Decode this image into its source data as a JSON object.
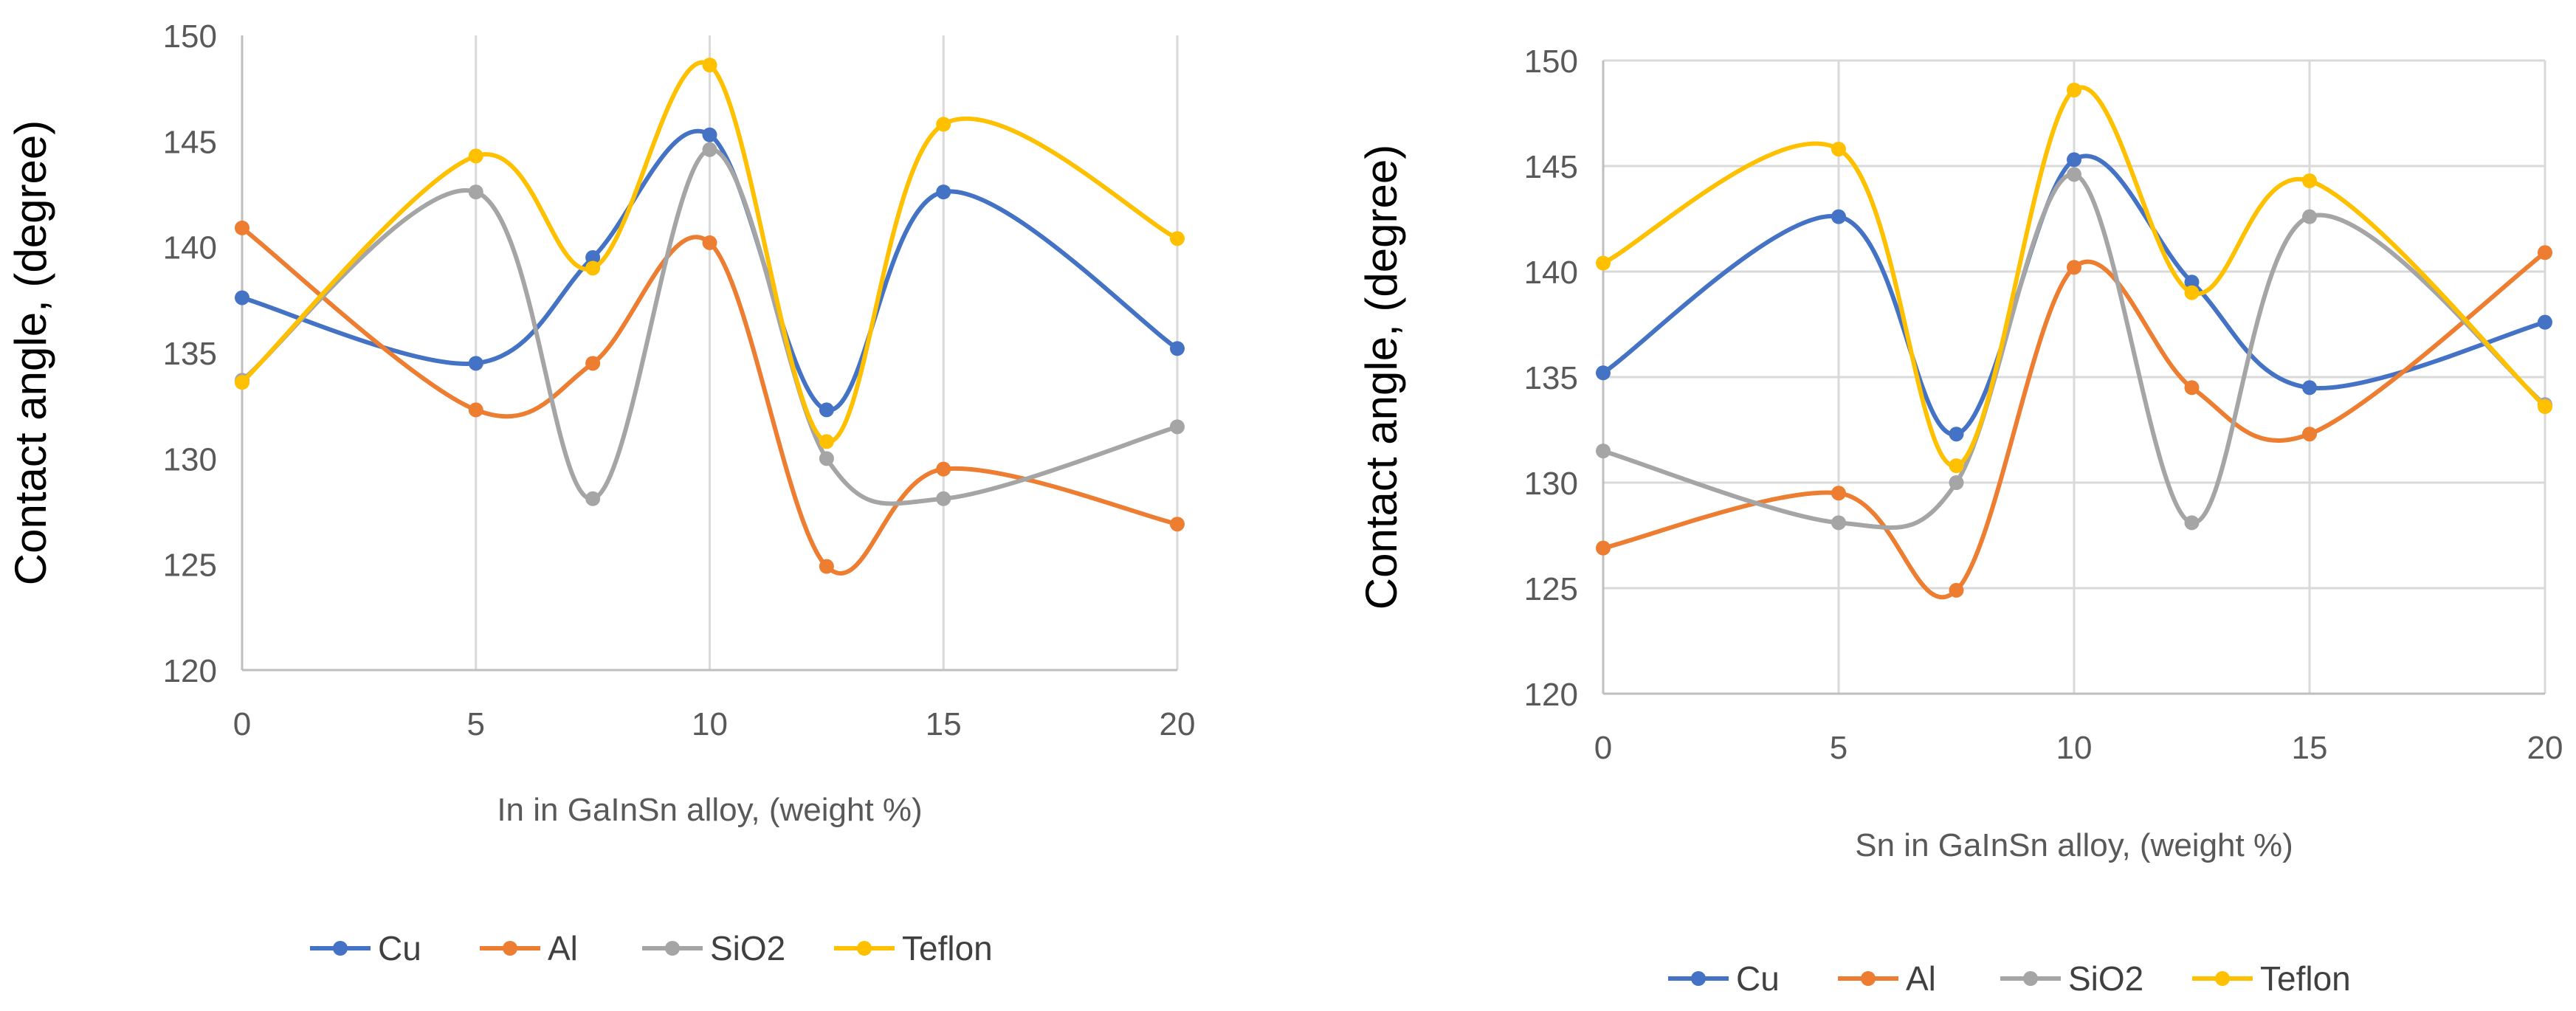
{
  "chart_data": [
    {
      "type": "line",
      "smooth": true,
      "x": [
        0,
        5,
        7.5,
        10,
        12.5,
        15,
        20
      ],
      "xlim": [
        0,
        20
      ],
      "x_ticks": [
        0,
        5,
        10,
        15,
        20
      ],
      "ylim": [
        120,
        150
      ],
      "y_ticks": [
        120,
        125,
        130,
        135,
        140,
        145,
        150
      ],
      "xlabel": "In in GaInSn alloy,  (weight %)",
      "ylabel": "Contact angle, (degree)",
      "grid": "vertical",
      "legend_position": "bottom",
      "series": [
        {
          "name": "Cu",
          "color": "#4472C4",
          "values": [
            137.6,
            134.5,
            139.5,
            145.3,
            132.3,
            142.6,
            135.2
          ]
        },
        {
          "name": "Al",
          "color": "#ED7D31",
          "values": [
            140.9,
            132.3,
            134.5,
            140.2,
            124.9,
            129.5,
            126.9
          ]
        },
        {
          "name": "SiO2",
          "color": "#A5A5A5",
          "values": [
            133.7,
            142.6,
            128.1,
            144.6,
            130.0,
            128.1,
            131.5
          ]
        },
        {
          "name": "Teflon",
          "color": "#FFC000",
          "values": [
            133.6,
            144.3,
            139.0,
            148.6,
            130.8,
            145.8,
            140.4
          ]
        }
      ]
    },
    {
      "type": "line",
      "smooth": true,
      "x": [
        0,
        5,
        7.5,
        10,
        12.5,
        15,
        20
      ],
      "xlim": [
        0,
        20
      ],
      "x_ticks": [
        0,
        5,
        10,
        15,
        20
      ],
      "ylim": [
        120,
        150
      ],
      "y_ticks": [
        120,
        125,
        130,
        135,
        140,
        145,
        150
      ],
      "xlabel": "Sn in GaInSn alloy,  (weight %)",
      "ylabel": "Contact angle, (degree)",
      "grid": "both",
      "legend_position": "bottom",
      "series": [
        {
          "name": "Cu",
          "color": "#4472C4",
          "values": [
            135.2,
            142.6,
            132.3,
            145.3,
            139.5,
            134.5,
            137.6
          ]
        },
        {
          "name": "Al",
          "color": "#ED7D31",
          "values": [
            126.9,
            129.5,
            124.9,
            140.2,
            134.5,
            132.3,
            140.9
          ]
        },
        {
          "name": "SiO2",
          "color": "#A5A5A5",
          "values": [
            131.5,
            128.1,
            130.0,
            144.6,
            128.1,
            142.6,
            133.7
          ]
        },
        {
          "name": "Teflon",
          "color": "#FFC000",
          "values": [
            140.4,
            145.8,
            130.8,
            148.6,
            139.0,
            144.3,
            133.6
          ]
        }
      ]
    }
  ]
}
